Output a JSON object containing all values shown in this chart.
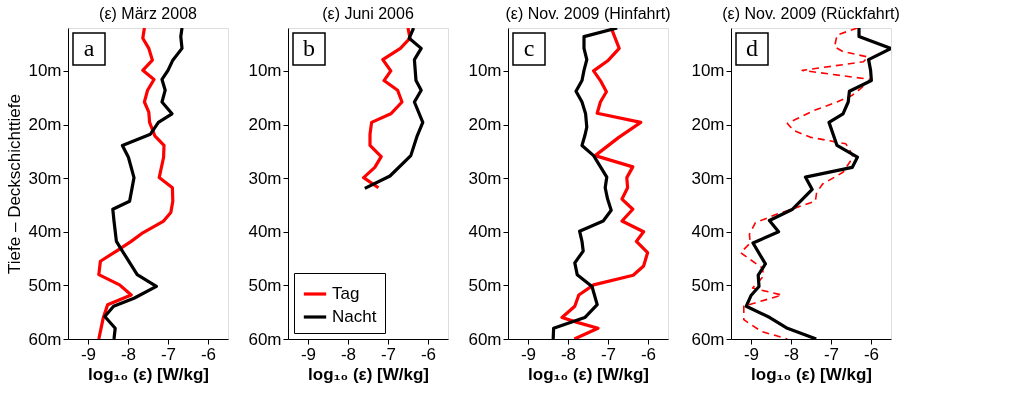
{
  "chart_data": [
    {
      "type": "line",
      "title": "(ε) März 2008",
      "xlabel": "log₁₀ (ε) [W/kg]",
      "ylabel": "Tiefe – Deckschichttiefe",
      "xlim": [
        -9.5,
        -5.5
      ],
      "xticks": [
        -9,
        -8,
        -7,
        -6
      ],
      "ylim": [
        60,
        2
      ],
      "yticks": [
        {
          "value": 10,
          "label": "10m"
        },
        {
          "value": 20,
          "label": "20m"
        },
        {
          "value": 30,
          "label": "30m"
        },
        {
          "value": 40,
          "label": "40m"
        },
        {
          "value": 50,
          "label": "50m"
        },
        {
          "value": 60,
          "label": "60m"
        }
      ],
      "annotations": [
        "a"
      ],
      "series": [
        {
          "color": "#ff0000",
          "x": [
            -7.59,
            -7.63,
            -7.48,
            -7.39,
            -7.63,
            -7.35,
            -7.51,
            -7.59,
            -7.48,
            -7.46,
            -7.33,
            -7.1,
            -7.11,
            -7.22,
            -6.89,
            -6.88,
            -6.93,
            -7.11,
            -7.63,
            -7.92,
            -8.29,
            -8.69,
            -8.73,
            -8.21,
            -7.92,
            -8.51,
            -8.62,
            -8.73
          ],
          "values": [
            2,
            3.9,
            5.8,
            8,
            9.9,
            11.6,
            13.6,
            15.8,
            17.7,
            19.6,
            22.1,
            23.9,
            26.1,
            29.9,
            31.8,
            34.3,
            36.4,
            38,
            40.2,
            41.8,
            43.6,
            45.5,
            48,
            49.9,
            51.8,
            53.6,
            56.1,
            60
          ]
        },
        {
          "color": "#000000",
          "x": [
            -6.65,
            -6.68,
            -6.65,
            -6.88,
            -7.0,
            -7.15,
            -7.07,
            -7.15,
            -6.9,
            -7.24,
            -7.44,
            -8.14,
            -7.99,
            -7.85,
            -7.96,
            -8.38,
            -8.35,
            -8.29,
            -8.14,
            -7.77,
            -7.29,
            -7.85,
            -8.36,
            -8.58,
            -8.32,
            -8.35
          ],
          "values": [
            2,
            3.6,
            5.8,
            8,
            9.9,
            11.6,
            13.6,
            15.8,
            18,
            19.6,
            21.8,
            23.9,
            26.1,
            29.9,
            34.3,
            35.8,
            38,
            41.8,
            43.6,
            48,
            50.2,
            52.4,
            53.9,
            55.8,
            58,
            60
          ]
        }
      ]
    },
    {
      "type": "line",
      "title": "(ε) Juni 2006",
      "xlabel": "log₁₀ (ε) [W/kg]",
      "xlim": [
        -9.5,
        -5.5
      ],
      "xticks": [
        -9,
        -8,
        -7,
        -6
      ],
      "ylim": [
        60,
        2
      ],
      "yticks": [
        {
          "value": 10,
          "label": "10m"
        },
        {
          "value": 20,
          "label": "20m"
        },
        {
          "value": 30,
          "label": "30m"
        },
        {
          "value": 40,
          "label": "40m"
        },
        {
          "value": 50,
          "label": "50m"
        },
        {
          "value": 60,
          "label": "60m"
        }
      ],
      "annotations": [
        "b"
      ],
      "legend": "bottom left",
      "series": [
        {
          "name": "Tag",
          "color": "#ff0000",
          "x": [
            -6.5,
            -6.45,
            -6.69,
            -7.13,
            -6.93,
            -7.1,
            -6.76,
            -6.65,
            -6.93,
            -7.41,
            -7.45,
            -7.45,
            -7.17,
            -7.33,
            -7.61,
            -7.24
          ],
          "values": [
            2,
            3.9,
            5.8,
            7.9,
            10,
            11.8,
            13.6,
            15.8,
            18,
            19.6,
            21.8,
            23.9,
            26,
            28,
            29.9,
            31.8
          ]
        },
        {
          "name": "Nacht",
          "color": "#000000",
          "x": [
            -6.36,
            -6.47,
            -6.17,
            -6.34,
            -6.3,
            -6.17,
            -6.34,
            -6.13,
            -6.27,
            -6.43,
            -6.95,
            -7.58
          ],
          "values": [
            2,
            3.9,
            5.8,
            7.9,
            11.8,
            13.6,
            15.8,
            19.6,
            22.1,
            25.8,
            29.6,
            31.9
          ]
        }
      ]
    },
    {
      "type": "line",
      "title": "(ε) Nov. 2009 (Hinfahrt)",
      "xlabel": "log₁₀ (ε) [W/kg]",
      "xlim": [
        -9.5,
        -5.5
      ],
      "xticks": [
        -9,
        -8,
        -7,
        -6
      ],
      "ylim": [
        60,
        2
      ],
      "yticks": [
        {
          "value": 10,
          "label": "10m"
        },
        {
          "value": 20,
          "label": "20m"
        },
        {
          "value": 30,
          "label": "30m"
        },
        {
          "value": 40,
          "label": "40m"
        },
        {
          "value": 50,
          "label": "50m"
        },
        {
          "value": 60,
          "label": "60m"
        }
      ],
      "annotations": [
        "c"
      ],
      "series": [
        {
          "color": "#ff0000",
          "x": [
            -6.92,
            -6.72,
            -6.99,
            -7.36,
            -7.19,
            -7.04,
            -7.19,
            -7.27,
            -6.18,
            -6.73,
            -7.32,
            -6.38,
            -6.53,
            -6.51,
            -6.65,
            -6.38,
            -6.65,
            -6.11,
            -6.29,
            -6.01,
            -6.11,
            -6.37,
            -7.36,
            -7.73,
            -7.83,
            -8.15,
            -7.77,
            -7.25,
            -7.84
          ],
          "values": [
            2,
            5.8,
            8,
            10,
            11.8,
            13.9,
            15.8,
            17.9,
            19.6,
            22.4,
            25.8,
            27.9,
            29.9,
            31.8,
            33.9,
            35.8,
            38,
            40,
            41.8,
            43.9,
            46.4,
            48.1,
            49.9,
            51.8,
            53.9,
            56,
            56.9,
            58,
            60
          ]
        },
        {
          "color": "#000000",
          "x": [
            -6.77,
            -7.6,
            -7.6,
            -7.53,
            -7.6,
            -7.65,
            -7.8,
            -7.65,
            -7.56,
            -7.53,
            -7.58,
            -7.65,
            -7.36,
            -7.03,
            -7.07,
            -7.01,
            -6.92,
            -7.12,
            -7.71,
            -7.65,
            -7.62,
            -7.83,
            -7.77,
            -7.4,
            -7.27,
            -7.58,
            -8.36,
            -8.37
          ],
          "values": [
            2,
            3.6,
            5.8,
            7.9,
            9.9,
            11.8,
            13.8,
            15.8,
            18,
            20.5,
            22.1,
            23.9,
            25.8,
            29.8,
            31.8,
            33.9,
            36,
            38,
            39.9,
            41.8,
            43.6,
            45.8,
            48,
            50.2,
            53.6,
            56,
            58,
            60
          ]
        }
      ]
    },
    {
      "type": "line",
      "title": "(ε) Nov. 2009 (Rückfahrt)",
      "xlabel": "log₁₀ (ε) [W/kg]",
      "xlim": [
        -9.5,
        -5.5
      ],
      "xticks": [
        -9,
        -8,
        -7,
        -6
      ],
      "ylim": [
        60,
        2
      ],
      "yticks": [
        {
          "value": 10,
          "label": "10m"
        },
        {
          "value": 20,
          "label": "20m"
        },
        {
          "value": 30,
          "label": "30m"
        },
        {
          "value": 40,
          "label": "40m"
        },
        {
          "value": 50,
          "label": "50m"
        },
        {
          "value": 60,
          "label": "60m"
        }
      ],
      "annotations": [
        "d"
      ],
      "series": [
        {
          "color": "#ff0000",
          "line_style": "dashed",
          "x": [
            -6.34,
            -6.85,
            -6.91,
            -6.7,
            -6.08,
            -6.19,
            -7.72,
            -6.01,
            -6.26,
            -6.48,
            -6.92,
            -7.43,
            -8.09,
            -7.94,
            -7.5,
            -6.63,
            -6.54,
            -6.45,
            -6.7,
            -7.21,
            -7.36,
            -7.39,
            -7.87,
            -8.38,
            -8.89,
            -9.04,
            -9.02,
            -9.26,
            -8.71,
            -8.69,
            -8.96,
            -8.23,
            -9.18,
            -9.18,
            -8.74,
            -8.09
          ],
          "values": [
            2,
            3.3,
            5.5,
            6.4,
            7.4,
            8.3,
            9.9,
            11.6,
            13.3,
            14.6,
            16,
            17.4,
            19.8,
            21.1,
            22.4,
            23.6,
            24.6,
            26.1,
            28.9,
            31.1,
            32.7,
            34.3,
            35.5,
            36.8,
            38.3,
            40.5,
            42.1,
            43.9,
            46.8,
            48.3,
            50.5,
            51.8,
            53.9,
            56.4,
            58.6,
            60
          ]
        },
        {
          "color": "#000000",
          "x": [
            -6.3,
            -6.3,
            -5.5,
            -6.06,
            -6.01,
            -5.99,
            -6.54,
            -6.57,
            -6.7,
            -7.05,
            -6.85,
            -6.34,
            -6.47,
            -7.64,
            -7.47,
            -7.96,
            -8.54,
            -8.31,
            -8.95,
            -8.64,
            -8.82,
            -8.8,
            -9.0,
            -9.12,
            -8.53,
            -8.09,
            -7.37
          ],
          "values": [
            2,
            3.6,
            5.8,
            7.9,
            9.9,
            11.8,
            13.8,
            15.8,
            18,
            19.6,
            23.9,
            26.1,
            28,
            29.8,
            32.1,
            35.8,
            37.9,
            40,
            42.1,
            46,
            48.1,
            50.2,
            51.9,
            53.9,
            56,
            58,
            60
          ]
        }
      ]
    }
  ]
}
